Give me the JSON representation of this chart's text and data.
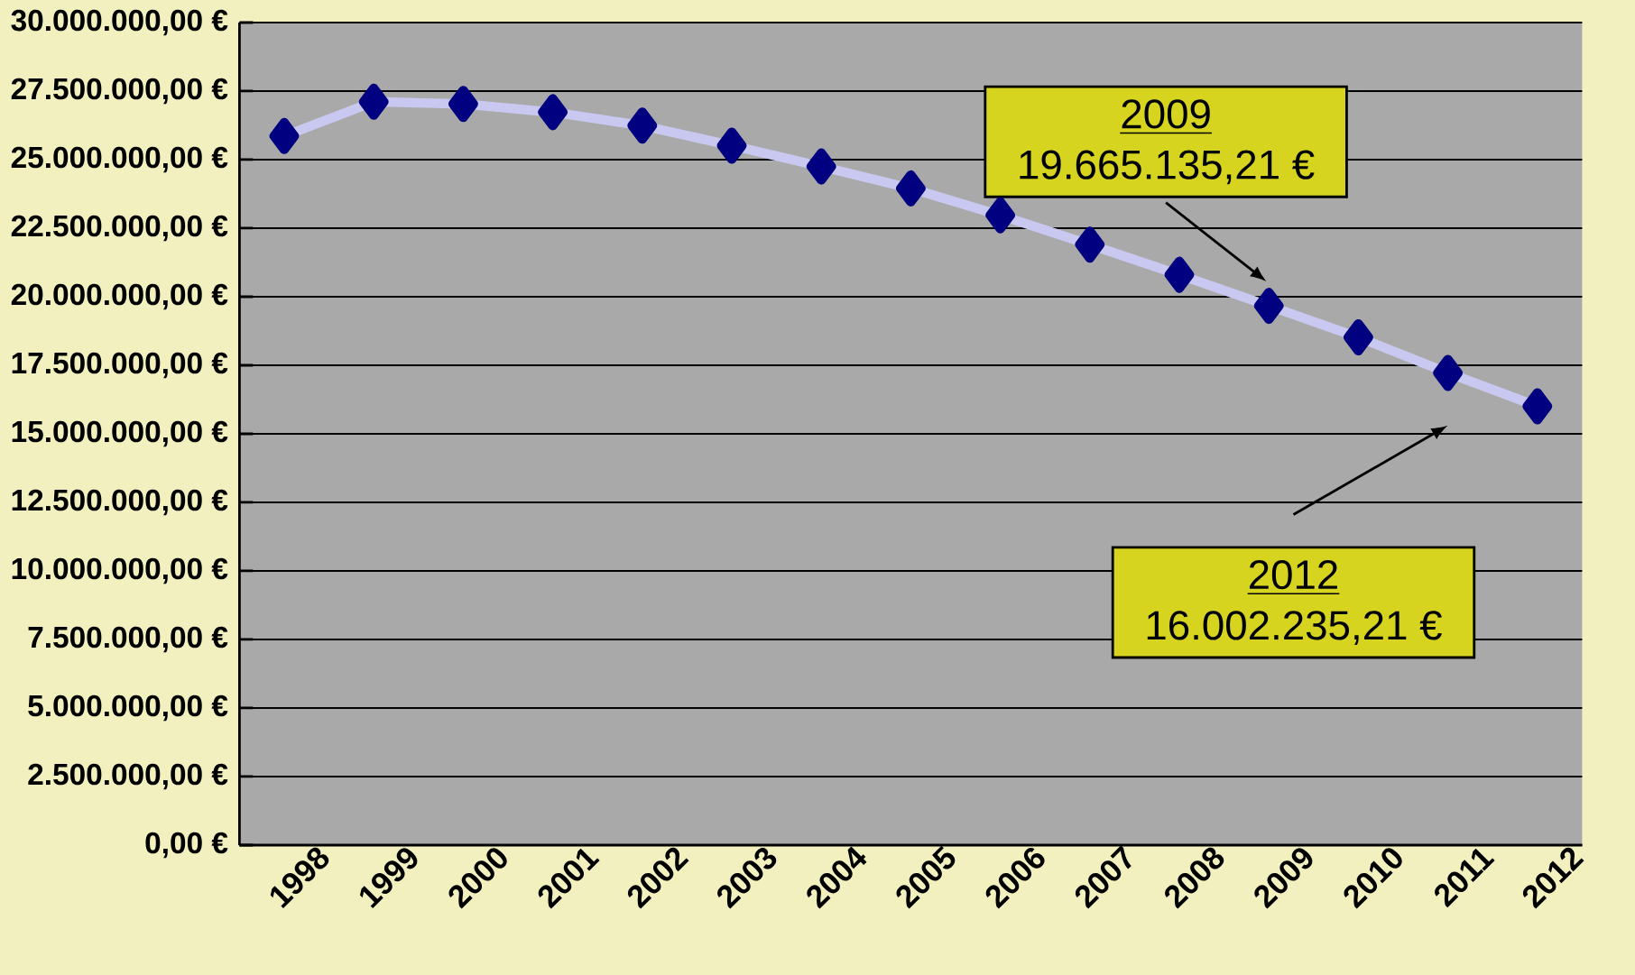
{
  "chart_data": {
    "type": "line",
    "categories": [
      "1998",
      "1999",
      "2000",
      "2001",
      "2002",
      "2003",
      "2004",
      "2005",
      "2006",
      "2007",
      "2008",
      "2009",
      "2010",
      "2011",
      "2012"
    ],
    "series": [
      {
        "color": "#000080",
        "values": [
          25860000,
          27110000,
          27030000,
          26730000,
          26240000,
          25510000,
          24750000,
          23950000,
          22970000,
          21900000,
          20800000,
          19665135.21,
          18520000,
          17220000,
          16002235.21
        ]
      }
    ],
    "ylim": [
      0,
      30000000
    ],
    "yticks": [
      {
        "value": 0,
        "label": "0,00 €"
      },
      {
        "value": 2500000,
        "label": "2.500.000,00 €"
      },
      {
        "value": 5000000,
        "label": "5.000.000,00 €"
      },
      {
        "value": 7500000,
        "label": "7.500.000,00 €"
      },
      {
        "value": 10000000,
        "label": "10.000.000,00 €"
      },
      {
        "value": 12500000,
        "label": "12.500.000,00 €"
      },
      {
        "value": 15000000,
        "label": "15.000.000,00 €"
      },
      {
        "value": 17500000,
        "label": "17.500.000,00 €"
      },
      {
        "value": 20000000,
        "label": "20.000.000,00 €"
      },
      {
        "value": 22500000,
        "label": "22.500.000,00 €"
      },
      {
        "value": 25000000,
        "label": "25.000.000,00 €"
      },
      {
        "value": 27500000,
        "label": "27.500.000,00 €"
      },
      {
        "value": 30000000,
        "label": "30.000.000,00 €"
      }
    ],
    "grid": "y",
    "marker": "diamond",
    "line_style": "solid",
    "annotations": [
      "2009",
      "19.665.135,21 €",
      "2012",
      "16.002.235,21 €"
    ]
  }
}
